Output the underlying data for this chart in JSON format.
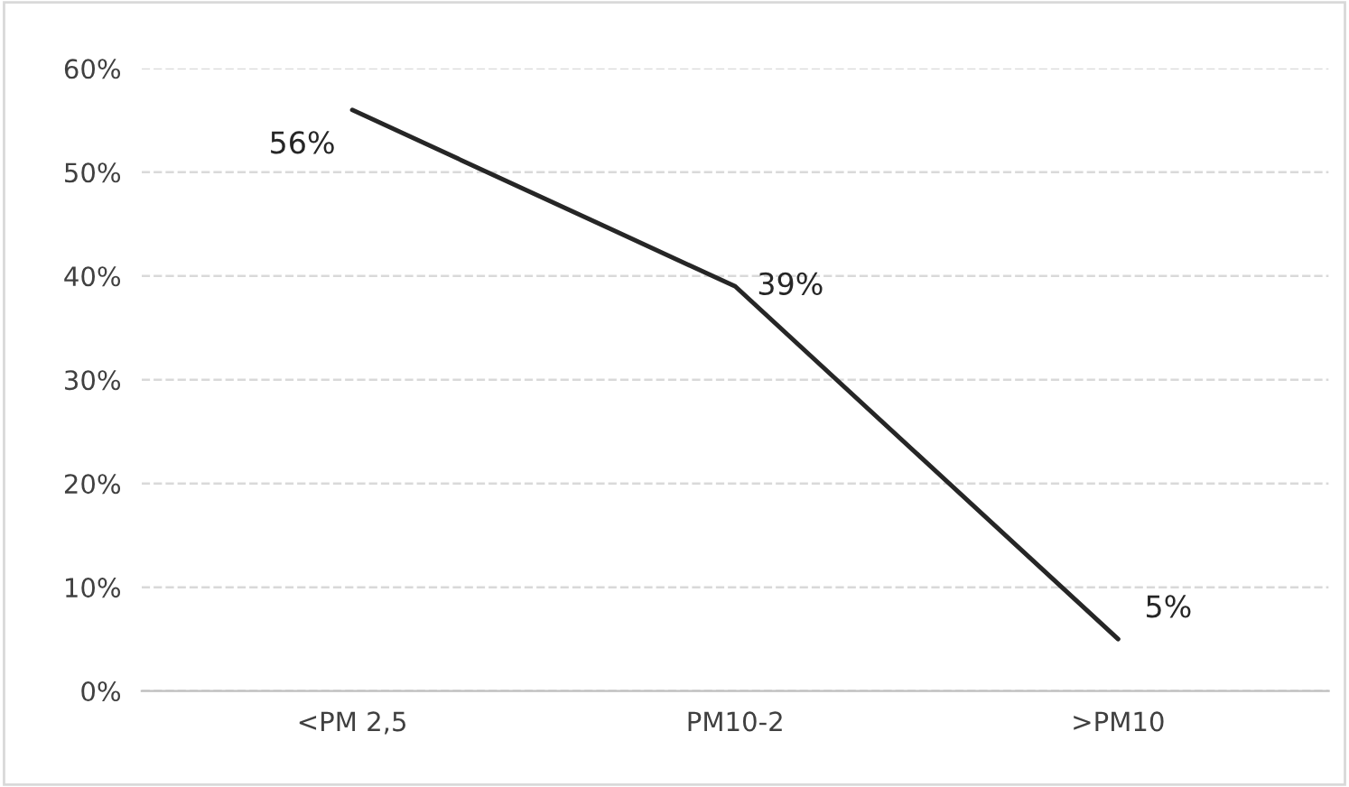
{
  "chart_data": {
    "type": "line",
    "categories": [
      "<PM 2,5",
      "PM10-2",
      ">PM10"
    ],
    "series": [
      {
        "color": "#262626",
        "values": [
          56,
          39,
          5
        ],
        "value_labels": [
          "56%",
          "39%",
          "5%"
        ]
      }
    ],
    "ylim": [
      0,
      60
    ],
    "yticks": [
      {
        "value": 0,
        "label": "0%"
      },
      {
        "value": 10,
        "label": "10%"
      },
      {
        "value": 20,
        "label": "20%"
      },
      {
        "value": 30,
        "label": "30%"
      },
      {
        "value": 40,
        "label": "40%"
      },
      {
        "value": 50,
        "label": "50%"
      },
      {
        "value": 60,
        "label": "60%"
      }
    ],
    "grid": "y",
    "line_style": "solid",
    "marker": "none",
    "legend": false
  }
}
